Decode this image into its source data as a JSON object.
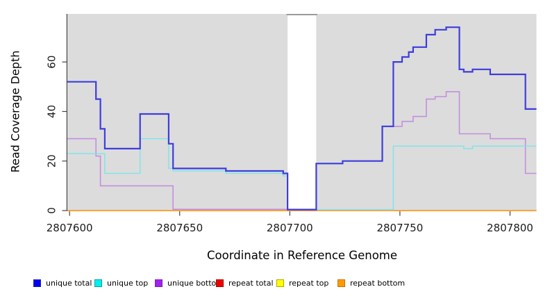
{
  "figure": {
    "background": "#ffffff"
  },
  "axes": {
    "ylabel": "Read Coverage Depth",
    "xlabel": "Coordinate in Reference Genome"
  },
  "legend": {
    "items": [
      {
        "label": "unique total",
        "fill": "#0000EE",
        "border": "#2222AA"
      },
      {
        "label": "unique top",
        "fill": "#00EEEE",
        "border": "#00A0A8"
      },
      {
        "label": "unique bottom",
        "fill": "#A020F0",
        "border": "#7A1FB8"
      },
      {
        "label": "repeat total",
        "fill": "#EE0000",
        "border": "#AA0000"
      },
      {
        "label": "repeat top",
        "fill": "#FFFF00",
        "border": "#B0A800"
      },
      {
        "label": "repeat bottom",
        "fill": "#FF9900",
        "border": "#C97400"
      }
    ]
  },
  "chart_data": {
    "type": "line",
    "step": true,
    "title": "",
    "xlabel": "Coordinate in Reference Genome",
    "ylabel": "Read Coverage Depth",
    "x_ticks": [
      2807600,
      2807650,
      2807700,
      2807750,
      2807800
    ],
    "y_ticks": [
      0,
      20,
      40,
      60
    ],
    "xlim": [
      2807599,
      2807812
    ],
    "ylim": [
      0,
      79.4
    ],
    "panel_bg": "#dcdcdc",
    "grid": false,
    "legend_position": "bottom",
    "masked_region": [
      2807699,
      2807712
    ],
    "masked_region_border_color": "#9a9a9a",
    "axis_color": "#444444",
    "tick_label_color": "#1a1a1a",
    "series": [
      {
        "name": "repeat total",
        "color": "#DD2222",
        "width": 1.3,
        "steps": [
          [
            2807599,
            0
          ]
        ]
      },
      {
        "name": "repeat top",
        "color": "#EDED4F",
        "width": 1.3,
        "steps": [
          [
            2807599,
            0
          ]
        ]
      },
      {
        "name": "repeat bottom",
        "color": "#FF9D2E",
        "width": 1.8,
        "steps": [
          [
            2807599,
            0
          ]
        ]
      },
      {
        "name": "unique bottom",
        "color": "#C28FDD",
        "width": 1.6,
        "steps": [
          [
            2807599,
            29
          ],
          [
            2807612,
            22
          ],
          [
            2807614,
            10
          ],
          [
            2807647,
            0.5
          ],
          [
            2807712,
            19
          ],
          [
            2807724,
            20
          ],
          [
            2807742,
            34
          ],
          [
            2807751,
            36
          ],
          [
            2807756,
            38
          ],
          [
            2807762,
            45
          ],
          [
            2807766,
            46
          ],
          [
            2807771,
            48
          ],
          [
            2807777,
            31
          ],
          [
            2807791,
            29
          ],
          [
            2807807,
            15
          ]
        ]
      },
      {
        "name": "unique top",
        "color": "#82E4E9",
        "width": 1.5,
        "steps": [
          [
            2807599,
            23
          ],
          [
            2807616,
            15
          ],
          [
            2807632,
            29
          ],
          [
            2807645,
            17
          ],
          [
            2807647,
            16
          ],
          [
            2807671,
            15
          ],
          [
            2807697,
            14
          ],
          [
            2807699,
            0.4
          ],
          [
            2807747,
            26
          ],
          [
            2807779,
            25
          ],
          [
            2807783,
            26
          ]
        ]
      },
      {
        "name": "unique total",
        "color": "#3D3DDD",
        "width": 2.2,
        "steps": [
          [
            2807599,
            52
          ],
          [
            2807612,
            45
          ],
          [
            2807614,
            33
          ],
          [
            2807616,
            25
          ],
          [
            2807632,
            39
          ],
          [
            2807645,
            27
          ],
          [
            2807647,
            17
          ],
          [
            2807671,
            16
          ],
          [
            2807697,
            15
          ],
          [
            2807699,
            0.4
          ],
          [
            2807712,
            19
          ],
          [
            2807724,
            20
          ],
          [
            2807742,
            34
          ],
          [
            2807747,
            60
          ],
          [
            2807751,
            62
          ],
          [
            2807754,
            64
          ],
          [
            2807756,
            66
          ],
          [
            2807762,
            71
          ],
          [
            2807766,
            73
          ],
          [
            2807771,
            74
          ],
          [
            2807777,
            57
          ],
          [
            2807779,
            56
          ],
          [
            2807783,
            57
          ],
          [
            2807791,
            55
          ],
          [
            2807807,
            41
          ]
        ]
      }
    ]
  }
}
